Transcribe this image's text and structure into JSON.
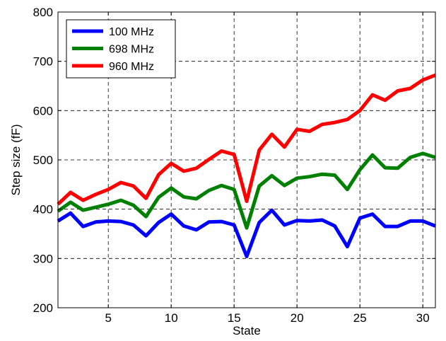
{
  "chart_data": {
    "type": "line",
    "title": "",
    "xlabel": "State",
    "ylabel": "Step size (fF)",
    "xlim": [
      1,
      31
    ],
    "ylim": [
      200,
      800
    ],
    "xticks": [
      5,
      10,
      15,
      20,
      25,
      30
    ],
    "yticks": [
      200,
      300,
      400,
      500,
      600,
      700,
      800
    ],
    "grid": true,
    "legend_position": "top-left",
    "x": [
      1,
      2,
      3,
      4,
      5,
      6,
      7,
      8,
      9,
      10,
      11,
      12,
      13,
      14,
      15,
      16,
      17,
      18,
      19,
      20,
      21,
      22,
      23,
      24,
      25,
      26,
      27,
      28,
      29,
      30,
      31
    ],
    "series": [
      {
        "name": "100 MHz",
        "color": "#0000ff",
        "values": [
          376,
          392,
          365,
          374,
          376,
          375,
          368,
          346,
          373,
          390,
          366,
          358,
          374,
          375,
          368,
          304,
          373,
          398,
          368,
          377,
          376,
          378,
          366,
          324,
          382,
          390,
          365,
          365,
          376,
          376,
          366
        ]
      },
      {
        "name": "698 MHz",
        "color": "#008000",
        "values": [
          396,
          414,
          398,
          404,
          410,
          418,
          408,
          385,
          424,
          443,
          425,
          421,
          438,
          448,
          440,
          362,
          447,
          468,
          448,
          463,
          466,
          471,
          469,
          440,
          480,
          510,
          484,
          483,
          505,
          513,
          505
        ]
      },
      {
        "name": "960 MHz",
        "color": "#ff0000",
        "values": [
          410,
          434,
          418,
          430,
          440,
          454,
          447,
          422,
          470,
          493,
          477,
          483,
          501,
          518,
          511,
          416,
          520,
          552,
          526,
          562,
          558,
          572,
          576,
          582,
          600,
          632,
          621,
          640,
          645,
          662,
          672
        ]
      }
    ]
  }
}
